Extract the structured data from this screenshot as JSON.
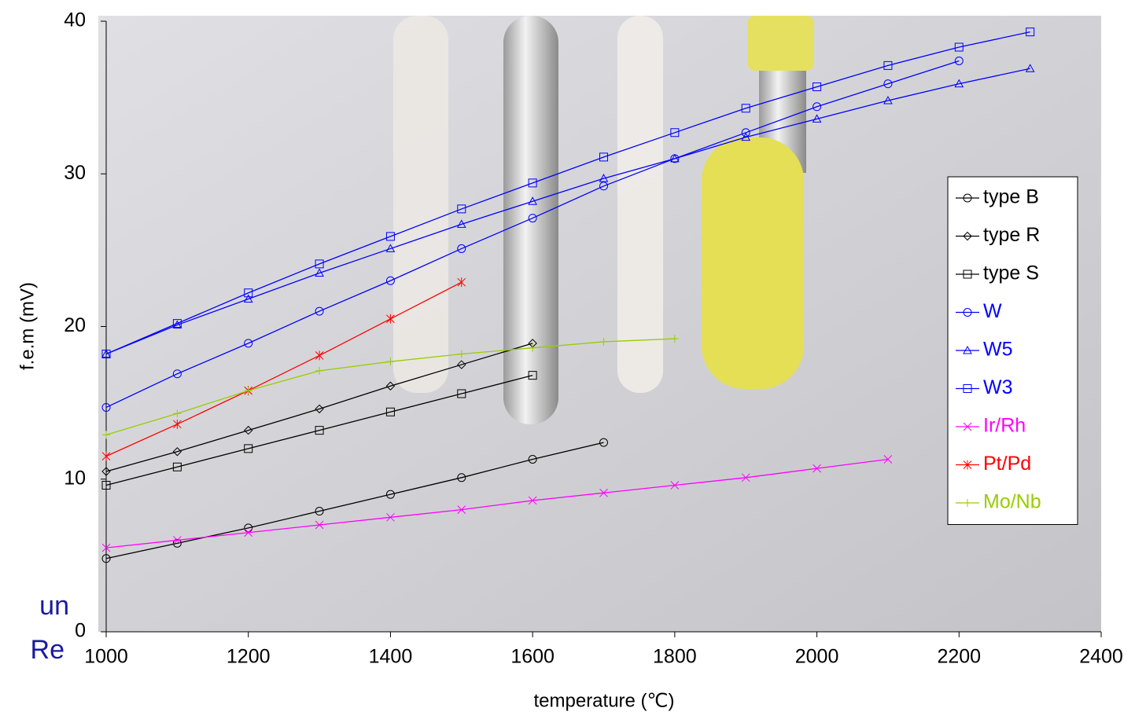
{
  "chart_data": {
    "type": "line",
    "xlabel": "temperature (℃)",
    "ylabel": "f.e.m (mV)",
    "annotations": [
      "un",
      "Re"
    ],
    "x": [
      1000,
      1100,
      1200,
      1300,
      1400,
      1500,
      1600,
      1700,
      1800,
      1900,
      2000,
      2100,
      2200,
      2300
    ],
    "xlim": [
      1000,
      2400
    ],
    "xticks": [
      1000,
      1200,
      1400,
      1600,
      1800,
      2000,
      2200,
      2400
    ],
    "ylim": [
      0,
      40
    ],
    "yticks": [
      0,
      10,
      20,
      30,
      40
    ],
    "legend": "right",
    "series": [
      {
        "name": "type B",
        "color": "#000000",
        "marker": "circle",
        "values": [
          4.8,
          5.8,
          6.8,
          7.9,
          9.0,
          10.1,
          11.3,
          12.4,
          null,
          null,
          null,
          null,
          null,
          null
        ]
      },
      {
        "name": "type R",
        "color": "#000000",
        "marker": "diamond",
        "values": [
          10.5,
          11.8,
          13.2,
          14.6,
          16.1,
          17.5,
          18.9,
          null,
          null,
          null,
          null,
          null,
          null,
          null
        ]
      },
      {
        "name": "type S",
        "color": "#000000",
        "marker": "square",
        "values": [
          9.6,
          10.8,
          12.0,
          13.2,
          14.4,
          15.6,
          16.8,
          null,
          null,
          null,
          null,
          null,
          null,
          null
        ]
      },
      {
        "name": "W",
        "color": "#0000ff",
        "marker": "circle",
        "values": [
          14.7,
          16.9,
          18.9,
          21.0,
          23.0,
          25.1,
          27.1,
          29.2,
          31.0,
          32.7,
          34.4,
          35.9,
          37.4,
          null
        ]
      },
      {
        "name": "W5",
        "color": "#0000ff",
        "marker": "triangle",
        "values": [
          18.2,
          20.1,
          21.8,
          23.5,
          25.1,
          26.7,
          28.2,
          29.7,
          31.0,
          32.4,
          33.6,
          34.8,
          35.9,
          36.9
        ]
      },
      {
        "name": "W3",
        "color": "#0000ff",
        "marker": "square",
        "values": [
          18.2,
          20.2,
          22.2,
          24.1,
          25.9,
          27.7,
          29.4,
          31.1,
          32.7,
          34.3,
          35.7,
          37.1,
          38.3,
          39.3
        ]
      },
      {
        "name": "Ir/Rh",
        "color": "#ff00ff",
        "marker": "x",
        "values": [
          5.5,
          6.0,
          6.5,
          7.0,
          7.5,
          8.0,
          8.6,
          9.1,
          9.6,
          10.1,
          10.7,
          11.3,
          null,
          null
        ]
      },
      {
        "name": "Pt/Pd",
        "color": "#ff0000",
        "marker": "star",
        "values": [
          11.5,
          13.6,
          15.8,
          18.1,
          20.5,
          22.9,
          null,
          null,
          null,
          null,
          null,
          null,
          null,
          null
        ]
      },
      {
        "name": "Mo/Nb",
        "color": "#99cc00",
        "marker": "plus",
        "values": [
          12.9,
          14.3,
          15.8,
          17.1,
          17.7,
          18.2,
          18.6,
          19.0,
          19.2,
          null,
          null,
          null,
          null,
          null
        ]
      }
    ]
  }
}
